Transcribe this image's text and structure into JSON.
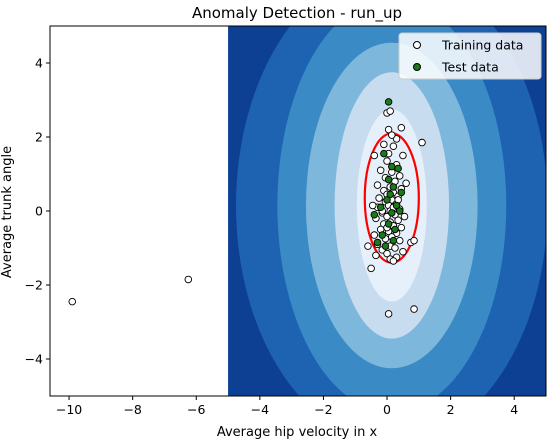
{
  "chart_data": {
    "type": "scatter",
    "title": "Anomaly Detection - run_up",
    "xlabel": "Average hip velocity in x",
    "ylabel": "Average trunk angle",
    "xlim": [
      -10.6,
      5.0
    ],
    "ylim": [
      -5.0,
      5.0
    ],
    "xticks": [
      -10,
      -8,
      -6,
      -4,
      -2,
      0,
      2,
      4
    ],
    "yticks": [
      -4,
      -2,
      0,
      2,
      4
    ],
    "contour_x_min": -5.0,
    "contour_center": [
      0.15,
      0.15
    ],
    "contour_levels": [
      {
        "rx": 4.9,
        "ry": 6.4,
        "color": "#1e62b2"
      },
      {
        "rx": 3.6,
        "ry": 5.6,
        "color": "#3a8ac6"
      },
      {
        "rx": 2.7,
        "ry": 4.4,
        "color": "#7db8dc"
      },
      {
        "rx": 1.8,
        "ry": 3.6,
        "color": "#c7dcef"
      },
      {
        "rx": 1.1,
        "ry": 2.6,
        "color": "#e6f0fb"
      }
    ],
    "contour_background": "#0d3f93",
    "decision_boundary": {
      "cx": 0.15,
      "cy": 0.35,
      "rx": 0.85,
      "ry": 1.75,
      "color": "#ff0000"
    },
    "legend": {
      "position": "top-right",
      "entries": [
        "Training data",
        "Test data"
      ]
    },
    "series": [
      {
        "name": "Training data",
        "color": "#ffffff",
        "points": [
          [
            -9.9,
            -2.45
          ],
          [
            -6.25,
            -1.85
          ],
          [
            1.1,
            1.85
          ],
          [
            0.85,
            -2.65
          ],
          [
            0.05,
            -2.78
          ],
          [
            -0.5,
            -1.55
          ],
          [
            0.0,
            2.65
          ],
          [
            0.1,
            2.7
          ],
          [
            0.05,
            2.2
          ],
          [
            0.45,
            2.25
          ],
          [
            -0.1,
            1.8
          ],
          [
            0.2,
            1.75
          ],
          [
            0.5,
            1.5
          ],
          [
            -0.4,
            1.5
          ],
          [
            0.0,
            1.35
          ],
          [
            0.3,
            1.25
          ],
          [
            -0.2,
            1.1
          ],
          [
            0.15,
            1.05
          ],
          [
            0.4,
            0.95
          ],
          [
            -0.05,
            0.9
          ],
          [
            0.25,
            0.8
          ],
          [
            -0.3,
            0.7
          ],
          [
            0.1,
            0.65
          ],
          [
            0.45,
            0.6
          ],
          [
            -0.1,
            0.55
          ],
          [
            0.2,
            0.5
          ],
          [
            0.0,
            0.45
          ],
          [
            0.35,
            0.4
          ],
          [
            -0.25,
            0.35
          ],
          [
            0.15,
            0.3
          ],
          [
            -0.05,
            0.25
          ],
          [
            0.3,
            0.2
          ],
          [
            0.05,
            0.15
          ],
          [
            -0.3,
            0.1
          ],
          [
            0.4,
            0.05
          ],
          [
            0.1,
            0.0
          ],
          [
            -0.15,
            -0.05
          ],
          [
            0.25,
            -0.1
          ],
          [
            0.0,
            -0.15
          ],
          [
            -0.35,
            -0.2
          ],
          [
            0.35,
            -0.25
          ],
          [
            0.1,
            -0.3
          ],
          [
            -0.1,
            -0.35
          ],
          [
            0.2,
            -0.4
          ],
          [
            0.45,
            -0.45
          ],
          [
            -0.2,
            -0.5
          ],
          [
            0.05,
            -0.55
          ],
          [
            0.3,
            -0.6
          ],
          [
            -0.4,
            -0.65
          ],
          [
            0.15,
            -0.7
          ],
          [
            -0.05,
            -0.75
          ],
          [
            0.4,
            -0.8
          ],
          [
            0.75,
            -0.85
          ],
          [
            0.85,
            -0.8
          ],
          [
            -0.3,
            -0.9
          ],
          [
            0.1,
            -0.95
          ],
          [
            0.25,
            -1.0
          ],
          [
            -0.15,
            -1.05
          ],
          [
            0.5,
            -1.1
          ],
          [
            0.0,
            -1.15
          ],
          [
            -0.35,
            -1.2
          ],
          [
            0.3,
            -1.25
          ],
          [
            0.1,
            -1.3
          ],
          [
            0.2,
            -1.35
          ],
          [
            -0.6,
            -0.95
          ],
          [
            0.6,
            0.75
          ],
          [
            -0.45,
            0.15
          ],
          [
            0.55,
            -0.15
          ],
          [
            0.05,
            1.55
          ],
          [
            0.3,
            1.95
          ],
          [
            0.15,
            2.05
          ],
          [
            -0.15,
            0.0
          ],
          [
            0.2,
            0.1
          ],
          [
            0.0,
            -0.45
          ],
          [
            0.35,
            0.3
          ]
        ]
      },
      {
        "name": "Test data",
        "color": "#1a7a1a",
        "points": [
          [
            0.05,
            2.95
          ],
          [
            -0.1,
            1.55
          ],
          [
            0.15,
            1.2
          ],
          [
            0.35,
            1.15
          ],
          [
            0.05,
            0.85
          ],
          [
            0.2,
            0.65
          ],
          [
            0.45,
            0.5
          ],
          [
            0.0,
            0.3
          ],
          [
            0.3,
            0.15
          ],
          [
            -0.2,
            0.1
          ],
          [
            -0.4,
            -0.1
          ],
          [
            0.15,
            -0.05
          ],
          [
            0.4,
            0.0
          ],
          [
            0.05,
            -0.35
          ],
          [
            0.25,
            -0.5
          ],
          [
            -0.15,
            -0.65
          ],
          [
            0.2,
            -0.8
          ],
          [
            -0.05,
            -0.95
          ],
          [
            -0.3,
            -0.85
          ],
          [
            0.1,
            0.45
          ]
        ]
      }
    ]
  }
}
